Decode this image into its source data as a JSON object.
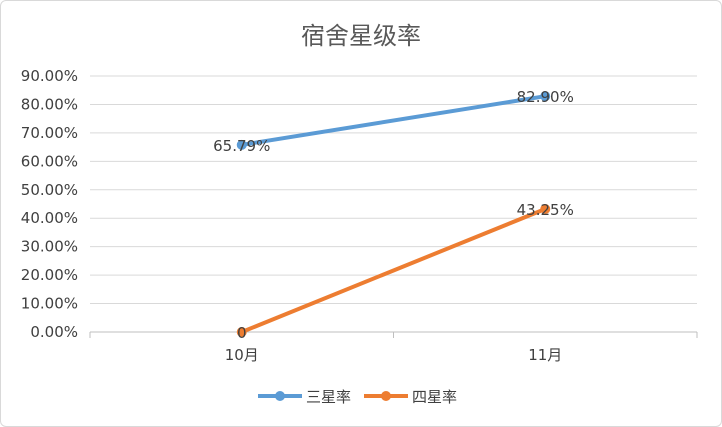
{
  "chart_data": {
    "type": "line",
    "title": "宿舍星级率",
    "categories": [
      "10月",
      "11月"
    ],
    "series": [
      {
        "name": "三星率",
        "values": [
          65.79,
          82.9
        ],
        "labels": [
          "65.79%",
          "82.90%"
        ],
        "color": "#5B9BD5"
      },
      {
        "name": "四星率",
        "values": [
          0,
          43.25
        ],
        "labels": [
          "0",
          "43.25%"
        ],
        "color": "#ED7D31"
      }
    ],
    "ylim": [
      0,
      90
    ],
    "yticks": [
      "0.00%",
      "10.00%",
      "20.00%",
      "30.00%",
      "40.00%",
      "50.00%",
      "60.00%",
      "70.00%",
      "80.00%",
      "90.00%"
    ],
    "xlabel": "",
    "ylabel": "",
    "grid": true,
    "legend": "bottom"
  }
}
